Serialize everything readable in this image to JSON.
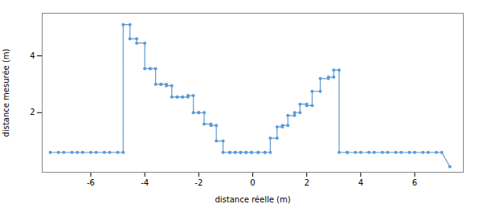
{
  "chart_data": {
    "type": "line",
    "xlabel": "distance réelle (m)",
    "ylabel": "distance mesurée (m)",
    "x": [
      -7.5,
      -7.2,
      -7.0,
      -6.7,
      -6.5,
      -6.3,
      -6.0,
      -5.8,
      -5.5,
      -5.3,
      -5.0,
      -4.8,
      -4.8,
      -4.55,
      -4.55,
      -4.3,
      -4.3,
      -4.0,
      -4.0,
      -3.8,
      -3.8,
      -3.6,
      -3.6,
      -3.4,
      -3.4,
      -3.2,
      -3.2,
      -3.0,
      -3.0,
      -2.8,
      -2.8,
      -2.6,
      -2.6,
      -2.4,
      -2.4,
      -2.2,
      -2.2,
      -2.0,
      -2.0,
      -1.8,
      -1.8,
      -1.55,
      -1.55,
      -1.35,
      -1.35,
      -1.1,
      -1.1,
      -0.85,
      -0.85,
      -0.65,
      -0.65,
      -0.45,
      -0.45,
      -0.25,
      -0.25,
      -0.05,
      -0.05,
      0.2,
      0.2,
      0.45,
      0.45,
      0.65,
      0.65,
      0.9,
      0.9,
      1.1,
      1.1,
      1.3,
      1.3,
      1.55,
      1.55,
      1.75,
      1.75,
      2.0,
      2.0,
      2.2,
      2.2,
      2.5,
      2.5,
      2.8,
      2.8,
      3.0,
      3.0,
      3.2,
      3.2,
      3.5,
      3.5,
      3.8,
      4.0,
      4.3,
      4.5,
      4.8,
      5.0,
      5.3,
      5.5,
      5.8,
      6.0,
      6.3,
      6.5,
      6.8,
      7.0,
      7.3
    ],
    "values": [
      0.6,
      0.6,
      0.6,
      0.6,
      0.6,
      0.6,
      0.6,
      0.6,
      0.6,
      0.6,
      0.6,
      0.6,
      5.1,
      5.1,
      4.6,
      4.6,
      4.45,
      4.45,
      3.55,
      3.55,
      3.55,
      3.55,
      3.0,
      3.0,
      3.0,
      3.0,
      2.95,
      2.95,
      2.55,
      2.55,
      2.55,
      2.55,
      2.55,
      2.55,
      2.6,
      2.6,
      2.0,
      2.0,
      2.0,
      2.0,
      1.6,
      1.6,
      1.55,
      1.55,
      1.0,
      1.0,
      0.6,
      0.6,
      0.6,
      0.6,
      0.6,
      0.6,
      0.6,
      0.6,
      0.6,
      0.6,
      0.6,
      0.6,
      0.6,
      0.6,
      0.6,
      0.6,
      1.1,
      1.1,
      1.5,
      1.5,
      1.55,
      1.55,
      1.9,
      1.9,
      2.0,
      2.0,
      2.3,
      2.3,
      2.25,
      2.25,
      2.75,
      2.75,
      3.2,
      3.2,
      3.25,
      3.25,
      3.5,
      3.5,
      0.6,
      0.6,
      0.6,
      0.6,
      0.6,
      0.6,
      0.6,
      0.6,
      0.6,
      0.6,
      0.6,
      0.6,
      0.6,
      0.6,
      0.6,
      0.6,
      0.6,
      0.1
    ],
    "color": "#5b9bd5",
    "marker": "circle",
    "xlim": [
      -7.8,
      7.8
    ],
    "ylim": [
      -0.1,
      5.5
    ],
    "xticks": [
      -6,
      -4,
      -2,
      0,
      2,
      4,
      6
    ],
    "yticks": [
      2,
      4
    ]
  }
}
